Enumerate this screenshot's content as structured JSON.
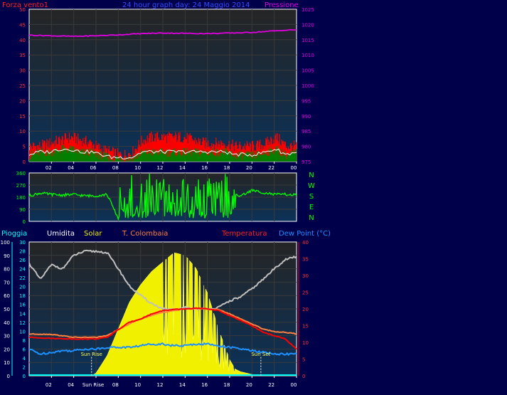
{
  "header": {
    "left": "Forza vento1",
    "title": "24 hour graph day: 24 Maggio 2014",
    "right": "Pressione"
  },
  "time_ticks": [
    "02",
    "04",
    "06",
    "08",
    "10",
    "12",
    "14",
    "16",
    "18",
    "20",
    "22",
    "00"
  ],
  "time_ticks_bottom": [
    "02",
    "04",
    "Sun Rise",
    "08",
    "10",
    "12",
    "14",
    "16",
    "18",
    "20",
    "22",
    "00"
  ],
  "colors": {
    "wind_gust": "#ff0000",
    "wind_avg": "#008000",
    "wind_line": "#ffffff",
    "pressure": "#e000e0",
    "direction": "#00ff00",
    "rain": "#00ffff",
    "humidity": "#c0c0c0",
    "solar": "#f0f000",
    "colombaia": "#ff8040",
    "temperature": "#ff0000",
    "dewpoint": "#1e90ff",
    "bg_top": "#252525",
    "bg_bottom": "#0b3158"
  },
  "direction_labels": [
    "N",
    "W",
    "S",
    "E",
    "N"
  ],
  "bottom_header": {
    "rain": "Pioggia",
    "humidity": "Umidita",
    "solar": "Solar",
    "colombaia": "T. Colombaia",
    "temperature": "Temperatura",
    "dewpoint": "Dew Point (°C)"
  },
  "annotations": {
    "sunrise": "Sun Rise",
    "sunset": "Sun Set"
  },
  "chart_data": [
    {
      "type": "line",
      "title": "24 hour graph day: 24 Maggio 2014",
      "x_hours": [
        0,
        24
      ],
      "series": [
        {
          "name": "Forza vento1",
          "axis": "left",
          "ylim": [
            0,
            50
          ],
          "ticks": [
            0,
            5,
            10,
            15,
            20,
            25,
            30,
            35,
            40,
            45,
            50
          ],
          "gust_values": [
            5,
            5,
            6,
            7,
            8,
            7,
            6,
            4,
            3,
            2,
            3,
            7,
            8,
            8,
            8,
            8,
            7,
            6,
            6,
            6,
            5,
            5,
            5,
            6,
            8,
            5,
            5
          ],
          "avg_values": [
            2,
            3,
            3,
            4,
            4,
            3,
            3,
            2,
            1,
            1,
            1,
            3,
            3,
            3,
            3,
            3,
            3,
            3,
            3,
            3,
            2,
            2,
            2,
            3,
            4,
            2,
            3
          ]
        },
        {
          "name": "Pressione",
          "axis": "right",
          "ylim": [
            975,
            1025
          ],
          "ticks": [
            975,
            980,
            985,
            990,
            995,
            1000,
            1005,
            1010,
            1015,
            1020,
            1025
          ],
          "x": [
            0,
            2,
            4,
            6,
            8,
            10,
            12,
            14,
            16,
            18,
            20,
            22,
            24
          ],
          "values": [
            1016.5,
            1016.3,
            1016.1,
            1016.3,
            1016.6,
            1017.0,
            1017.2,
            1017.1,
            1017.0,
            1017.2,
            1017.4,
            1017.9,
            1018.3
          ]
        }
      ]
    },
    {
      "type": "line",
      "series_label": "direction",
      "ylim": [
        0,
        360
      ],
      "ticks": [
        0,
        90,
        180,
        270,
        360
      ],
      "x": [
        0,
        1,
        2,
        3,
        4,
        5,
        6,
        7,
        8,
        9,
        10,
        11,
        12,
        13,
        14,
        15,
        16,
        17,
        18,
        19,
        20,
        21,
        22,
        23,
        24
      ],
      "values": [
        190,
        210,
        200,
        195,
        200,
        190,
        190,
        200,
        20,
        210,
        60,
        330,
        90,
        320,
        100,
        30,
        300,
        40,
        200,
        190,
        230,
        215,
        200,
        200,
        195
      ]
    },
    {
      "type": "line",
      "axes": {
        "rain_ticks": [
          0,
          10,
          20,
          30,
          40,
          50,
          60,
          70,
          80,
          90,
          100
        ],
        "humidity_ticks": [
          0,
          2,
          4,
          6,
          8,
          10,
          12,
          14,
          16,
          18,
          20,
          22,
          24,
          26,
          28,
          30
        ],
        "temp_ticks": [
          0,
          5,
          10,
          15,
          20,
          25,
          30,
          35,
          40
        ],
        "temp_ylim": [
          0,
          40
        ]
      },
      "series": [
        {
          "name": "Umidita",
          "axis": "percent",
          "x": [
            0,
            1,
            2,
            3,
            4,
            5,
            6,
            7,
            8,
            9,
            10,
            11,
            12,
            13,
            14,
            15,
            16,
            17,
            18,
            19,
            20,
            21,
            22,
            23,
            24
          ],
          "values": [
            84,
            72,
            83,
            80,
            90,
            93,
            93,
            92,
            80,
            67,
            60,
            54,
            50,
            49,
            51,
            50,
            50,
            51,
            56,
            59,
            65,
            72,
            80,
            87,
            89
          ]
        },
        {
          "name": "Solar",
          "axis": "percent",
          "x": [
            0,
            5.6,
            6,
            7,
            8,
            9,
            10,
            11,
            12,
            13,
            14,
            15,
            16,
            17,
            18,
            18.5,
            19,
            20,
            21,
            24
          ],
          "values": [
            0,
            0,
            2,
            15,
            35,
            55,
            68,
            78,
            85,
            92,
            90,
            80,
            62,
            35,
            12,
            5,
            3,
            1,
            0,
            0
          ]
        },
        {
          "name": "T. Colombaia",
          "axis": "temp",
          "x": [
            0,
            2,
            4,
            6,
            7,
            8,
            9,
            10,
            11,
            12,
            13,
            14,
            15,
            16,
            17,
            18,
            19,
            20,
            21,
            22,
            23,
            24
          ],
          "values": [
            12.5,
            12.4,
            11.5,
            11.5,
            12,
            13.8,
            15.5,
            17,
            18,
            19,
            19.5,
            20,
            20,
            20,
            19.8,
            18.5,
            17,
            15.5,
            14,
            13.2,
            13,
            12.5
          ]
        },
        {
          "name": "Temperatura",
          "axis": "temp",
          "x": [
            0,
            2,
            4,
            6,
            7,
            8,
            9,
            10,
            11,
            12,
            13,
            14,
            15,
            16,
            17,
            18,
            19,
            20,
            21,
            22,
            23,
            24
          ],
          "values": [
            11.5,
            11.2,
            11,
            11,
            11.5,
            13.8,
            16,
            17,
            18.5,
            19.5,
            19.8,
            20,
            20.2,
            20,
            19.5,
            18,
            16.5,
            15,
            13,
            12,
            11,
            8
          ]
        },
        {
          "name": "Dew Point (°C)",
          "axis": "temp",
          "x": [
            0,
            1,
            2,
            3,
            4,
            5,
            6,
            7,
            8,
            9,
            10,
            11,
            12,
            13,
            14,
            15,
            16,
            17,
            18,
            19,
            20,
            21,
            22,
            23,
            24
          ],
          "values": [
            8,
            6.5,
            7,
            7.5,
            7.5,
            8,
            8,
            8.5,
            8.5,
            8.5,
            9,
            9.5,
            9.5,
            9,
            9,
            9.5,
            9.5,
            9,
            8.5,
            8,
            7.5,
            7,
            6.5,
            6.5,
            6.5
          ]
        },
        {
          "name": "Pioggia",
          "axis": "rain",
          "x": [
            0,
            24
          ],
          "values": [
            0,
            0
          ]
        }
      ]
    }
  ]
}
